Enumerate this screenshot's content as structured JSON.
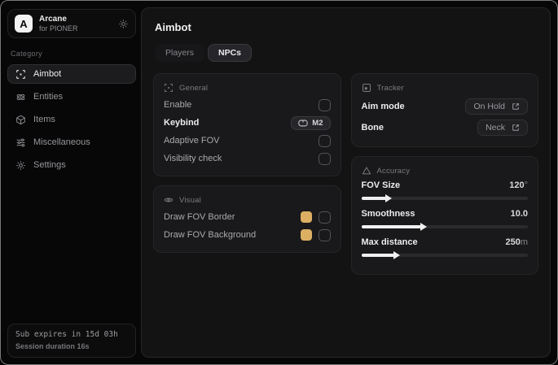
{
  "accent_color": "#dcaf63",
  "sidebar": {
    "brand": {
      "logo_letter": "A",
      "name": "Arcane",
      "subtitle": "for PIONER"
    },
    "category_label": "Category",
    "items": [
      {
        "label": "Aimbot",
        "icon": "crosshair-icon",
        "active": true
      },
      {
        "label": "Entities",
        "icon": "atom-icon",
        "active": false
      },
      {
        "label": "Items",
        "icon": "cube-icon",
        "active": false
      },
      {
        "label": "Miscellaneous",
        "icon": "sliders-icon",
        "active": false
      },
      {
        "label": "Settings",
        "icon": "gear-icon",
        "active": false
      }
    ],
    "footer": {
      "line1": "Sub expires in 15d 03h",
      "line2": "Session duration 16s"
    }
  },
  "main": {
    "title": "Aimbot",
    "tabs": [
      {
        "label": "Players",
        "active": false
      },
      {
        "label": "NPCs",
        "active": true
      }
    ],
    "cards": {
      "general": {
        "title": "General",
        "rows": [
          {
            "label": "Enable",
            "control": "checkbox",
            "checked": false
          },
          {
            "label": "Keybind",
            "control": "keybind",
            "value": "M2"
          },
          {
            "label": "Adaptive FOV",
            "control": "checkbox",
            "checked": false
          },
          {
            "label": "Visibility check",
            "control": "checkbox",
            "checked": false
          }
        ]
      },
      "visual": {
        "title": "Visual",
        "rows": [
          {
            "label": "Draw FOV Border",
            "color": "#dcaf63",
            "checked": false
          },
          {
            "label": "Draw FOV Background",
            "color": "#dcaf63",
            "checked": false
          }
        ]
      },
      "tracker": {
        "title": "Tracker",
        "rows": [
          {
            "label": "Aim mode",
            "value": "On Hold"
          },
          {
            "label": "Bone",
            "value": "Neck"
          }
        ]
      },
      "accuracy": {
        "title": "Accuracy",
        "rows": [
          {
            "label": "FOV Size",
            "value": "120",
            "unit": "°",
            "percent": 15
          },
          {
            "label": "Smoothness",
            "value": "10.0",
            "unit": "",
            "percent": 36
          },
          {
            "label": "Max distance",
            "value": "250",
            "unit": "m",
            "percent": 20
          }
        ]
      }
    }
  }
}
